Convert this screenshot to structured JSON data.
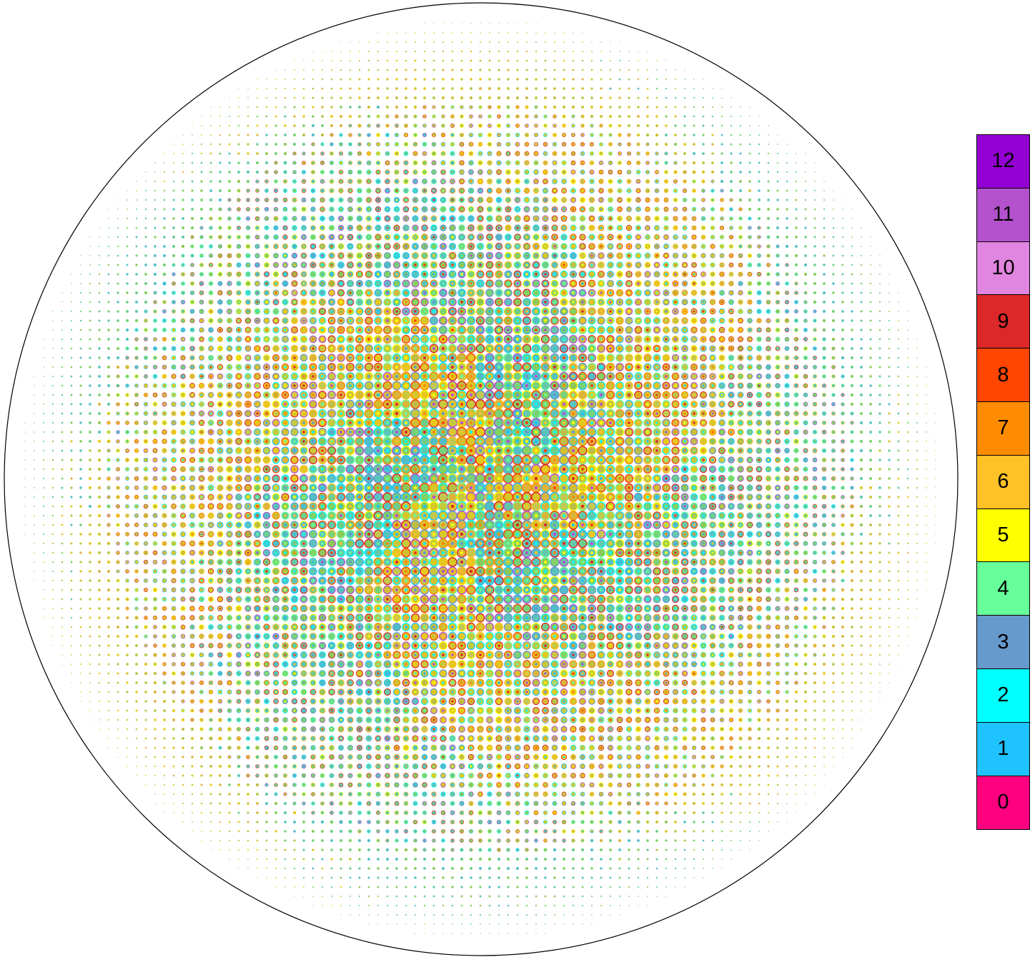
{
  "legend": {
    "items": [
      {
        "label": "12",
        "color": "#9400d3"
      },
      {
        "label": "11",
        "color": "#b452cd"
      },
      {
        "label": "10",
        "color": "#e085e0"
      },
      {
        "label": "9",
        "color": "#dc2828"
      },
      {
        "label": "8",
        "color": "#ff4500"
      },
      {
        "label": "7",
        "color": "#ff8c00"
      },
      {
        "label": "6",
        "color": "#ffc125"
      },
      {
        "label": "5",
        "color": "#ffff00"
      },
      {
        "label": "4",
        "color": "#66ff99"
      },
      {
        "label": "3",
        "color": "#6699cc"
      },
      {
        "label": "2",
        "color": "#00ffff"
      },
      {
        "label": "1",
        "color": "#1fc3ff"
      },
      {
        "label": "0",
        "color": "#ff0080"
      }
    ]
  }
}
